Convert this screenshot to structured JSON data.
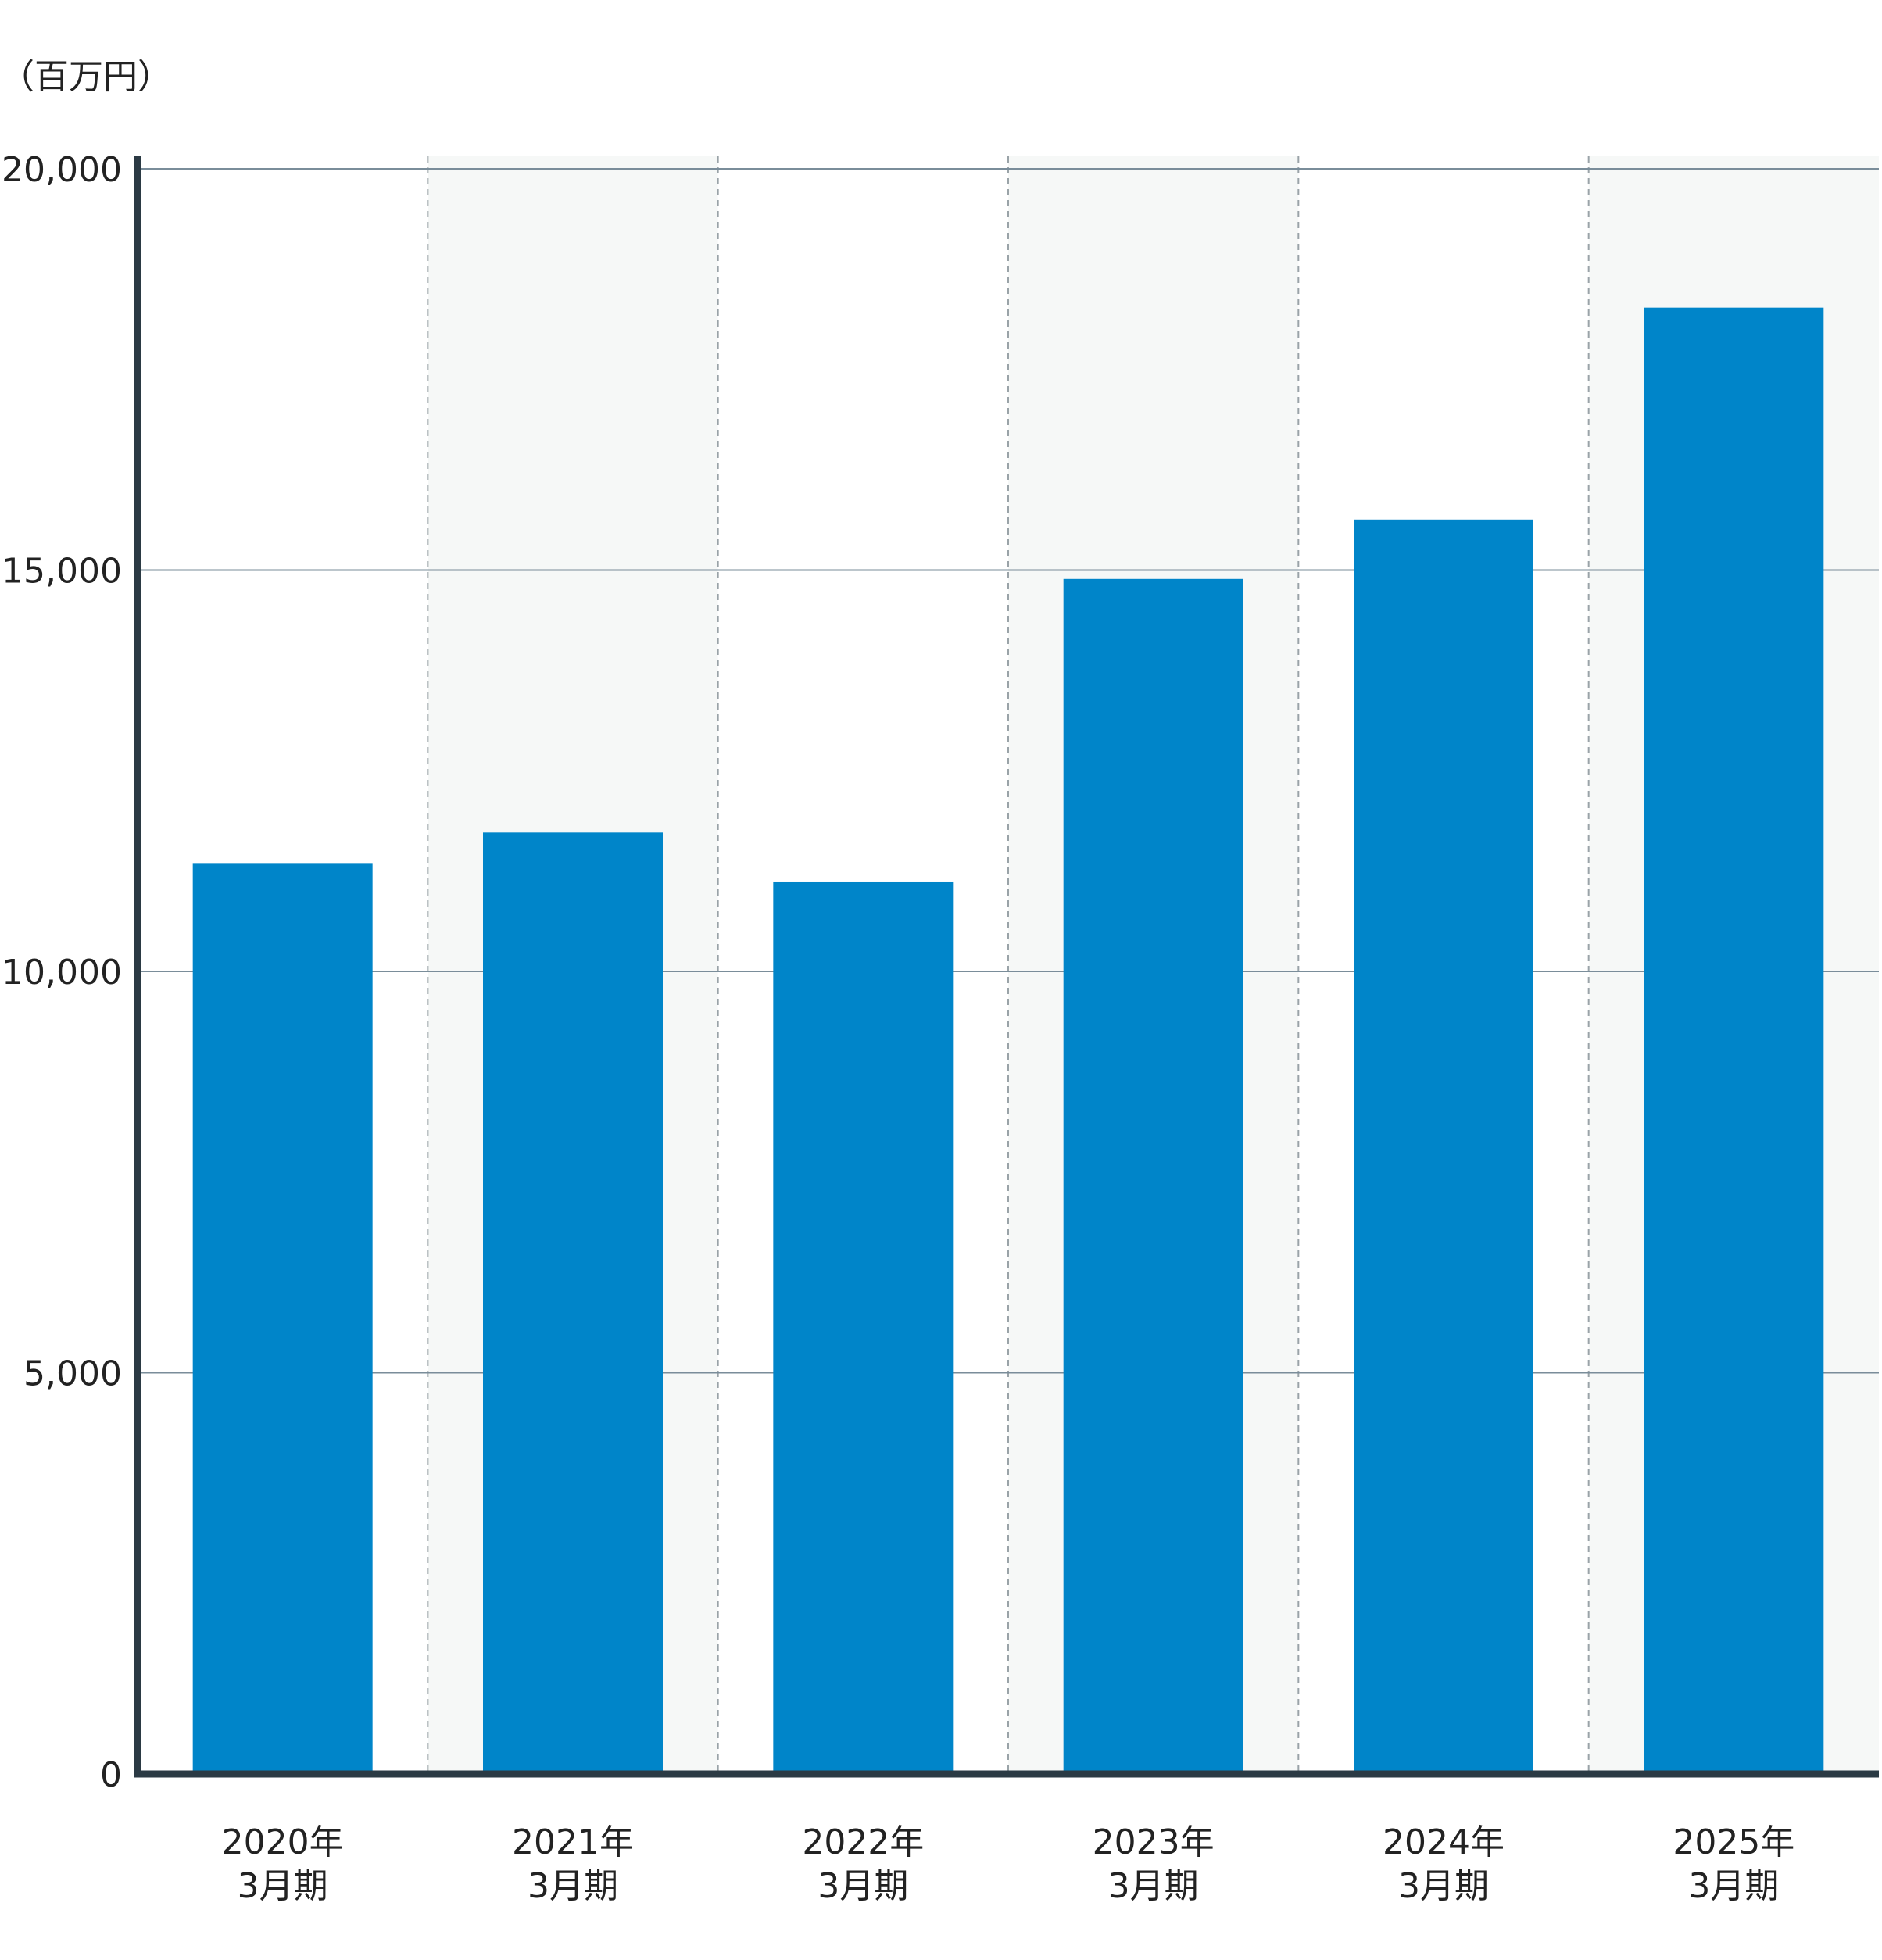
{
  "unit_label": "（百万円）",
  "colors": {
    "bar": "#0085C9",
    "axis": "#2B3A44",
    "gridline": "#7A8D9A",
    "band_shade": "#F6F8F7",
    "separator": "#9AA3A8",
    "text": "#222222"
  },
  "chart_data": {
    "type": "bar",
    "title": "",
    "xlabel": "",
    "ylabel": "（百万円）",
    "ylim": [
      0,
      20000
    ],
    "yticks": [
      {
        "value": 0,
        "label": "0"
      },
      {
        "value": 5000,
        "label": "5,000"
      },
      {
        "value": 10000,
        "label": "10,000"
      },
      {
        "value": 15000,
        "label": "15,000"
      },
      {
        "value": 20000,
        "label": "20,000"
      }
    ],
    "categories": [
      [
        "2020年",
        "3月期"
      ],
      [
        "2021年",
        "3月期"
      ],
      [
        "2022年",
        "3月期"
      ],
      [
        "2023年",
        "3月期"
      ],
      [
        "2024年",
        "3月期"
      ],
      [
        "2025年",
        "3月期"
      ]
    ],
    "values": [
      11350,
      11730,
      11120,
      14890,
      15630,
      18270
    ],
    "grid": true,
    "legend": "none"
  }
}
